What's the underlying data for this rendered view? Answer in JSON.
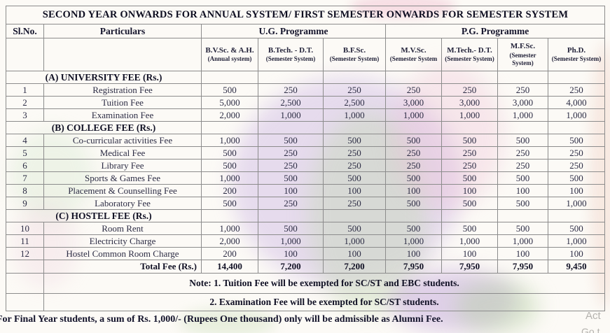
{
  "title": "SECOND YEAR ONWARDS FOR ANNUAL SYSTEM/ FIRST SEMESTER ONWARDS FOR SEMESTER SYSTEM",
  "columns": {
    "sl_no": "Sl.No.",
    "particulars": "Particulars",
    "ug_group": "U.G. Programme",
    "pg_group": "P.G. Programme",
    "programmes": [
      {
        "name": "B.V.Sc. & A.H.",
        "system": "(Annual system)"
      },
      {
        "name": "B.Tech. - D.T.",
        "system": "(Semester System)"
      },
      {
        "name": "B.F.Sc.",
        "system": "(Semester System)"
      },
      {
        "name": "M.V.Sc.",
        "system": "(Semester System"
      },
      {
        "name": "M.Tech.- D.T.",
        "system": "(Semester System)"
      },
      {
        "name": "M.F.Sc.",
        "system": "(Semester System)"
      },
      {
        "name": "Ph.D.",
        "system": "(Semester System)"
      }
    ]
  },
  "sections": [
    {
      "heading": "(A) UNIVERSITY FEE (Rs.)",
      "rows": [
        {
          "sl": "1",
          "particulars": "Registration Fee",
          "fees": [
            "500",
            "250",
            "250",
            "250",
            "250",
            "250",
            "250"
          ]
        },
        {
          "sl": "2",
          "particulars": "Tuition Fee",
          "fees": [
            "5,000",
            "2,500",
            "2,500",
            "3,000",
            "3,000",
            "3,000",
            "4,000"
          ]
        },
        {
          "sl": "3",
          "particulars": "Examination Fee",
          "fees": [
            "2,000",
            "1,000",
            "1,000",
            "1,000",
            "1,000",
            "1,000",
            "1,000"
          ]
        }
      ]
    },
    {
      "heading": "(B) COLLEGE FEE (Rs.)",
      "rows": [
        {
          "sl": "4",
          "particulars": "Co-curricular activities Fee",
          "fees": [
            "1,000",
            "500",
            "500",
            "500",
            "500",
            "500",
            "500"
          ]
        },
        {
          "sl": "5",
          "particulars": "Medical Fee",
          "fees": [
            "500",
            "250",
            "250",
            "250",
            "250",
            "250",
            "250"
          ]
        },
        {
          "sl": "6",
          "particulars": "Library Fee",
          "fees": [
            "500",
            "250",
            "250",
            "250",
            "250",
            "250",
            "250"
          ]
        },
        {
          "sl": "7",
          "particulars": "Sports & Games Fee",
          "fees": [
            "1,000",
            "500",
            "500",
            "500",
            "500",
            "500",
            "500"
          ]
        },
        {
          "sl": "8",
          "particulars": "Placement & Counselling Fee",
          "fees": [
            "200",
            "100",
            "100",
            "100",
            "100",
            "100",
            "100"
          ]
        },
        {
          "sl": "9",
          "particulars": "Laboratory Fee",
          "fees": [
            "500",
            "250",
            "250",
            "500",
            "500",
            "500",
            "1,000"
          ]
        }
      ]
    },
    {
      "heading": "(C) HOSTEL FEE (Rs.)",
      "rows": [
        {
          "sl": "10",
          "particulars": "Room Rent",
          "fees": [
            "1,000",
            "500",
            "500",
            "500",
            "500",
            "500",
            "500"
          ]
        },
        {
          "sl": "11",
          "particulars": "Electricity Charge",
          "fees": [
            "2,000",
            "1,000",
            "1,000",
            "1,000",
            "1,000",
            "1,000",
            "1,000"
          ]
        },
        {
          "sl": "12",
          "particulars": "Hostel Common Room Charge",
          "fees": [
            "200",
            "100",
            "100",
            "100",
            "100",
            "100",
            "100"
          ]
        }
      ]
    }
  ],
  "total": {
    "label": "Total Fee (Rs.)",
    "fees": [
      "14,400",
      "7,200",
      "7,200",
      "7,950",
      "7,950",
      "7,950",
      "9,450"
    ]
  },
  "notes": [
    "Note: 1. Tuition Fee will be exempted for SC/ST and EBC students.",
    "2. Examination Fee will be exempted for SC/ST students."
  ],
  "footer": "For Final Year students, a sum of Rs. 1,000/- (Rupees One thousand) only will be admissible as Alumni Fee.",
  "background_fragments": {
    "line1": "Act",
    "line2": "Go t"
  },
  "colors": {
    "ink": "#23233a",
    "border": "#8c8c8c",
    "paper": "#fcfaf6",
    "watermark_purple": "#c6ace2",
    "watermark_green": "#bcd6a8",
    "watermark_pink": "#ecbed4",
    "fragment_gray": "#b4b2ae"
  }
}
